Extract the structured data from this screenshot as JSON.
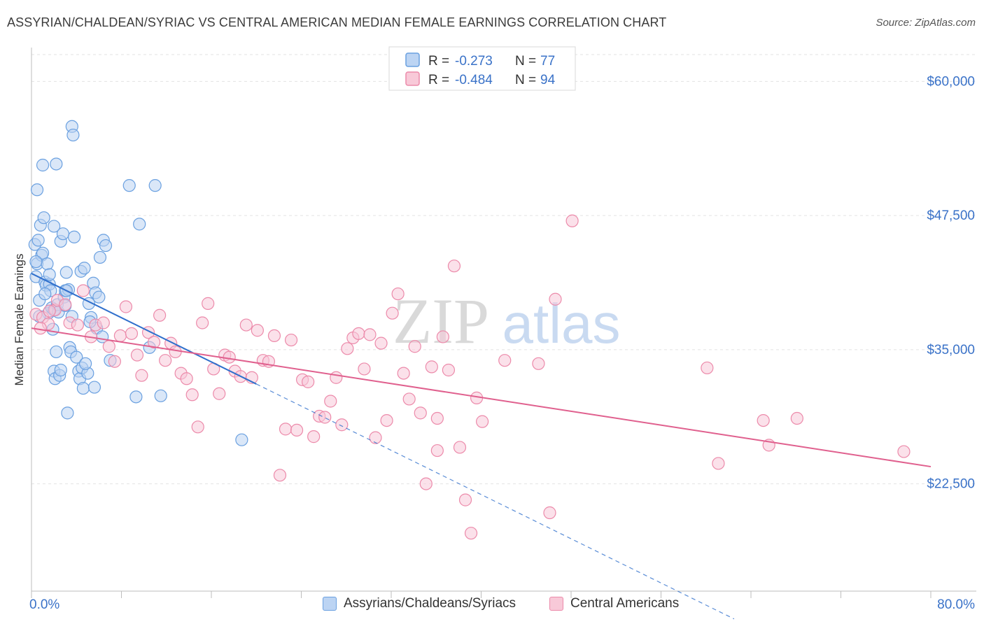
{
  "title": "ASSYRIAN/CHALDEAN/SYRIAC VS CENTRAL AMERICAN MEDIAN FEMALE EARNINGS CORRELATION CHART",
  "source": "Source: ZipAtlas.com",
  "watermark": {
    "zip": "ZIP",
    "atlas": "atlas"
  },
  "colors": {
    "blue": "#6aa0e0",
    "blue_fill": "#bcd4f3",
    "blue_line": "#2f6fcc",
    "pink": "#ec8aaa",
    "pink_fill": "#f8c9d8",
    "pink_line": "#e0608e",
    "axis_text": "#3a72c8"
  },
  "legend_stats": [
    {
      "r_label": "R =",
      "r_value": "-0.273",
      "n_label": "N =",
      "n_value": "77",
      "color": "#6aa0e0"
    },
    {
      "r_label": "R =",
      "r_value": "-0.484",
      "n_label": "N =",
      "n_value": "94",
      "color": "#ec8aaa"
    }
  ],
  "chart_data": {
    "type": "scatter",
    "title": "ASSYRIAN/CHALDEAN/SYRIAC VS CENTRAL AMERICAN MEDIAN FEMALE EARNINGS CORRELATION CHART",
    "xlabel": "",
    "ylabel": "Median Female Earnings",
    "xlim": [
      0,
      80
    ],
    "ylim": [
      12500,
      62500
    ],
    "x_tick_labels": [
      "0.0%",
      "80.0%"
    ],
    "y_ticks": [
      {
        "value": 22500,
        "label": "$22,500"
      },
      {
        "value": 35000,
        "label": "$35,000"
      },
      {
        "value": 47500,
        "label": "$47,500"
      },
      {
        "value": 60000,
        "label": "$60,000"
      }
    ],
    "grid": true,
    "legend_position": "top-center",
    "series": [
      {
        "name": "Assyrians/Chaldeans/Syriacs",
        "trend": {
          "x0": 0,
          "y0": 42100,
          "x1": 20,
          "y1": 31800,
          "dashed_to_x": 62.5
        },
        "points": [
          [
            0.3,
            44.8
          ],
          [
            0.4,
            41.8
          ],
          [
            0.5,
            43.0
          ],
          [
            0.6,
            45.2
          ],
          [
            0.7,
            39.6
          ],
          [
            0.8,
            46.6
          ],
          [
            0.9,
            43.8
          ],
          [
            1.0,
            44.0
          ],
          [
            0.5,
            49.9
          ],
          [
            1.0,
            52.2
          ],
          [
            1.1,
            47.3
          ],
          [
            1.2,
            41.3
          ],
          [
            1.3,
            41.0
          ],
          [
            1.4,
            43.0
          ],
          [
            1.5,
            38.4
          ],
          [
            1.6,
            41.1
          ],
          [
            1.7,
            40.5
          ],
          [
            1.8,
            38.9
          ],
          [
            1.9,
            36.9
          ],
          [
            2.0,
            38.7
          ],
          [
            1.6,
            42.0
          ],
          [
            2.0,
            33.0
          ],
          [
            2.1,
            32.3
          ],
          [
            2.2,
            34.8
          ],
          [
            2.0,
            46.5
          ],
          [
            2.3,
            39.2
          ],
          [
            2.4,
            38.5
          ],
          [
            2.5,
            32.6
          ],
          [
            2.2,
            52.3
          ],
          [
            2.6,
            45.1
          ],
          [
            2.8,
            45.8
          ],
          [
            2.9,
            39.9
          ],
          [
            3.0,
            40.5
          ],
          [
            3.0,
            39.1
          ],
          [
            3.1,
            42.2
          ],
          [
            3.2,
            29.1
          ],
          [
            3.3,
            40.6
          ],
          [
            3.4,
            35.2
          ],
          [
            3.5,
            34.8
          ],
          [
            3.6,
            55.8
          ],
          [
            3.7,
            55.0
          ],
          [
            3.8,
            45.5
          ],
          [
            4.0,
            34.3
          ],
          [
            4.2,
            33.0
          ],
          [
            4.3,
            32.3
          ],
          [
            4.4,
            42.3
          ],
          [
            4.5,
            33.3
          ],
          [
            4.6,
            31.4
          ],
          [
            4.7,
            42.6
          ],
          [
            5.0,
            32.8
          ],
          [
            5.1,
            39.3
          ],
          [
            5.3,
            38.0
          ],
          [
            5.5,
            41.2
          ],
          [
            5.6,
            31.5
          ],
          [
            5.7,
            40.3
          ],
          [
            5.8,
            37.0
          ],
          [
            6.0,
            39.9
          ],
          [
            6.1,
            43.6
          ],
          [
            6.4,
            45.2
          ],
          [
            6.6,
            44.7
          ],
          [
            7.0,
            34.0
          ],
          [
            8.7,
            50.3
          ],
          [
            9.3,
            30.6
          ],
          [
            9.6,
            46.7
          ],
          [
            10.5,
            35.2
          ],
          [
            11.0,
            50.3
          ],
          [
            11.5,
            30.7
          ],
          [
            18.7,
            26.6
          ],
          [
            0.4,
            43.2
          ],
          [
            1.2,
            40.2
          ],
          [
            2.6,
            33.1
          ],
          [
            3.1,
            40.5
          ],
          [
            3.6,
            38.1
          ],
          [
            4.8,
            33.7
          ],
          [
            5.2,
            37.6
          ],
          [
            6.3,
            36.2
          ],
          [
            0.7,
            38.1
          ]
        ]
      },
      {
        "name": "Central Americans",
        "trend": {
          "x0": 0,
          "y0": 37000,
          "x1": 80,
          "y1": 24100
        },
        "points": [
          [
            0.4,
            38.3
          ],
          [
            1.0,
            38.0
          ],
          [
            1.5,
            37.4
          ],
          [
            2.1,
            38.7
          ],
          [
            2.3,
            39.6
          ],
          [
            3.0,
            39.2
          ],
          [
            3.4,
            37.5
          ],
          [
            4.1,
            37.3
          ],
          [
            4.6,
            40.5
          ],
          [
            5.3,
            36.2
          ],
          [
            5.7,
            37.3
          ],
          [
            6.4,
            37.5
          ],
          [
            6.9,
            35.3
          ],
          [
            7.4,
            33.9
          ],
          [
            7.9,
            36.3
          ],
          [
            8.4,
            39.0
          ],
          [
            8.9,
            36.5
          ],
          [
            9.4,
            34.5
          ],
          [
            9.8,
            32.6
          ],
          [
            10.4,
            36.6
          ],
          [
            10.9,
            35.7
          ],
          [
            11.4,
            38.2
          ],
          [
            11.9,
            34.0
          ],
          [
            12.4,
            35.6
          ],
          [
            12.8,
            34.8
          ],
          [
            13.3,
            32.8
          ],
          [
            13.8,
            32.3
          ],
          [
            14.3,
            30.8
          ],
          [
            14.8,
            27.8
          ],
          [
            15.2,
            37.5
          ],
          [
            15.7,
            39.3
          ],
          [
            16.2,
            33.2
          ],
          [
            16.7,
            30.9
          ],
          [
            17.2,
            34.5
          ],
          [
            17.6,
            34.3
          ],
          [
            18.1,
            33.0
          ],
          [
            18.6,
            32.5
          ],
          [
            19.1,
            37.3
          ],
          [
            19.6,
            32.4
          ],
          [
            20.1,
            36.8
          ],
          [
            20.6,
            34.0
          ],
          [
            21.1,
            33.9
          ],
          [
            21.6,
            36.3
          ],
          [
            22.1,
            23.3
          ],
          [
            22.6,
            27.6
          ],
          [
            23.1,
            35.9
          ],
          [
            23.6,
            27.5
          ],
          [
            24.1,
            32.2
          ],
          [
            24.6,
            32.0
          ],
          [
            25.1,
            26.9
          ],
          [
            25.6,
            28.8
          ],
          [
            26.1,
            28.7
          ],
          [
            26.6,
            30.2
          ],
          [
            27.1,
            32.4
          ],
          [
            27.6,
            28.0
          ],
          [
            28.1,
            35.1
          ],
          [
            28.6,
            36.1
          ],
          [
            29.1,
            36.5
          ],
          [
            29.6,
            33.2
          ],
          [
            30.1,
            36.4
          ],
          [
            30.6,
            26.8
          ],
          [
            31.1,
            35.6
          ],
          [
            31.6,
            28.4
          ],
          [
            32.1,
            38.4
          ],
          [
            32.6,
            40.2
          ],
          [
            33.1,
            32.8
          ],
          [
            33.6,
            30.4
          ],
          [
            34.1,
            35.3
          ],
          [
            34.6,
            29.1
          ],
          [
            35.1,
            22.5
          ],
          [
            35.6,
            33.4
          ],
          [
            36.1,
            25.6
          ],
          [
            36.6,
            36.2
          ],
          [
            37.1,
            33.1
          ],
          [
            37.6,
            42.8
          ],
          [
            38.1,
            25.9
          ],
          [
            38.6,
            21.0
          ],
          [
            39.1,
            17.9
          ],
          [
            39.6,
            30.5
          ],
          [
            40.1,
            28.3
          ],
          [
            42.1,
            34.0
          ],
          [
            46.1,
            19.8
          ],
          [
            46.6,
            39.7
          ],
          [
            48.1,
            47.0
          ],
          [
            60.1,
            33.3
          ],
          [
            61.1,
            24.4
          ],
          [
            65.1,
            28.4
          ],
          [
            65.6,
            26.1
          ],
          [
            68.1,
            28.6
          ],
          [
            77.6,
            25.5
          ],
          [
            0.8,
            37.0
          ],
          [
            1.6,
            38.6
          ],
          [
            36.1,
            28.6
          ],
          [
            45.1,
            33.7
          ]
        ]
      }
    ]
  }
}
